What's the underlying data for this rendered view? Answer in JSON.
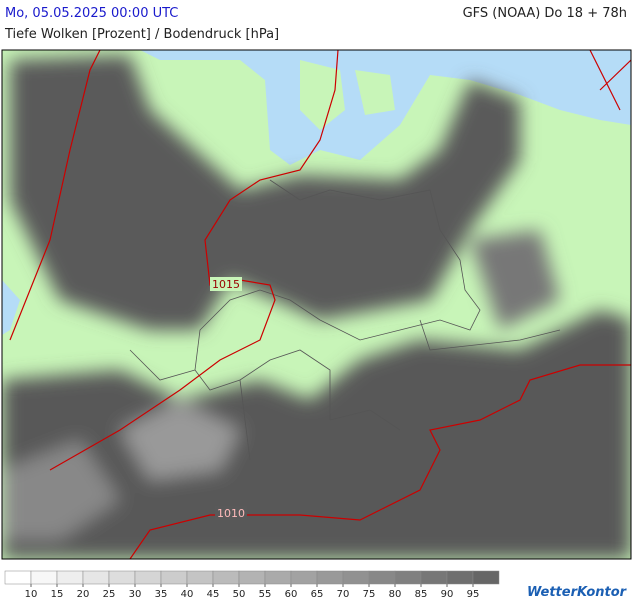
{
  "header": {
    "date": "Mo, 05.05.2025 00:00 UTC",
    "model": "GFS (NOAA) Do 18 + 78h",
    "subtitle": "Tiefe Wolken [Prozent] / Bodendruck [hPa]"
  },
  "map": {
    "isobar_labels": [
      "1015",
      "1010"
    ]
  },
  "legend": {
    "ticks": [
      10,
      15,
      20,
      25,
      30,
      35,
      40,
      45,
      50,
      55,
      60,
      65,
      70,
      75,
      80,
      85,
      90,
      95
    ]
  },
  "logo": "WetterKontor"
}
